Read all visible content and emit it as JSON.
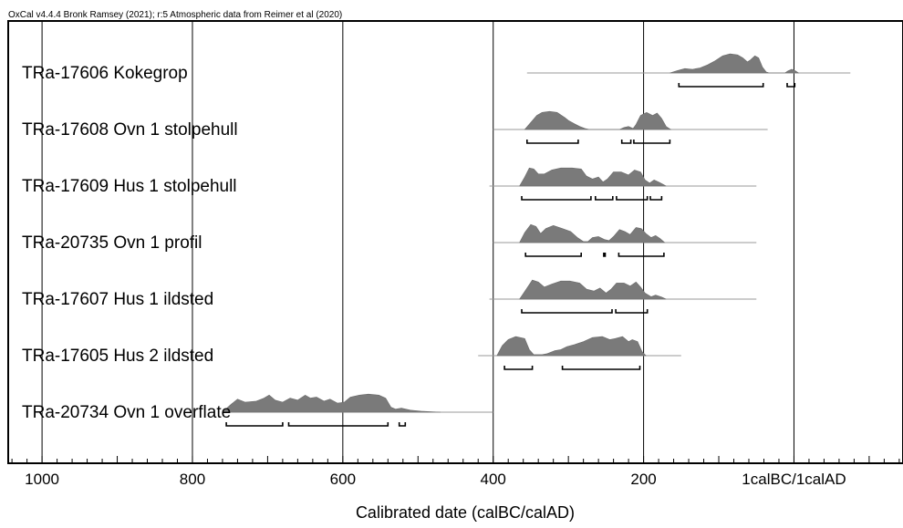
{
  "chart_data": {
    "type": "area",
    "header": "OxCal v4.4.4 Bronk Ramsey (2021); r:5 Atmospheric data from Reimer et al (2020)",
    "xlabel": "Calibrated date (calBC/calAD)",
    "xlim": [
      1045,
      -145
    ],
    "x_ticks": [
      {
        "value": 1000,
        "label": "1000"
      },
      {
        "value": 800,
        "label": "800"
      },
      {
        "value": 600,
        "label": "600"
      },
      {
        "value": 400,
        "label": "400"
      },
      {
        "value": 200,
        "label": "200"
      },
      {
        "value": 0,
        "label": "1calBC/1calAD"
      }
    ],
    "series": [
      {
        "name": "TRa-17606 Kokegrop",
        "dist": [
          [
            165,
            0
          ],
          [
            155,
            0.12
          ],
          [
            145,
            0.22
          ],
          [
            135,
            0.18
          ],
          [
            125,
            0.25
          ],
          [
            115,
            0.4
          ],
          [
            105,
            0.6
          ],
          [
            95,
            0.85
          ],
          [
            85,
            0.95
          ],
          [
            75,
            0.9
          ],
          [
            68,
            0.75
          ],
          [
            62,
            0.55
          ],
          [
            58,
            0.65
          ],
          [
            52,
            0.85
          ],
          [
            47,
            0.75
          ],
          [
            42,
            0.3
          ],
          [
            37,
            0.05
          ],
          [
            33,
            0
          ],
          [
            12,
            0
          ],
          [
            8,
            0.1
          ],
          [
            3,
            0.18
          ],
          [
            -2,
            0.1
          ],
          [
            -6,
            0
          ]
        ],
        "line": [
          355,
          -75
        ],
        "ranges": [
          [
            153,
            41
          ],
          [
            9,
            -1
          ]
        ]
      },
      {
        "name": "TRa-17608 Ovn 1 stolpehull",
        "dist": [
          [
            358,
            0
          ],
          [
            350,
            0.35
          ],
          [
            342,
            0.7
          ],
          [
            335,
            0.85
          ],
          [
            325,
            0.9
          ],
          [
            315,
            0.85
          ],
          [
            305,
            0.6
          ],
          [
            300,
            0.45
          ],
          [
            292,
            0.28
          ],
          [
            285,
            0.15
          ],
          [
            278,
            0.05
          ],
          [
            272,
            0
          ],
          [
            232,
            0
          ],
          [
            226,
            0.1
          ],
          [
            220,
            0.15
          ],
          [
            214,
            0.05
          ],
          [
            210,
            0.25
          ],
          [
            204,
            0.7
          ],
          [
            196,
            0.85
          ],
          [
            188,
            0.7
          ],
          [
            182,
            0.82
          ],
          [
            176,
            0.55
          ],
          [
            170,
            0.15
          ],
          [
            164,
            0
          ]
        ],
        "line": [
          400,
          35
        ],
        "ranges": [
          [
            355,
            287
          ],
          [
            229,
            217
          ],
          [
            213,
            165
          ]
        ]
      },
      {
        "name": "TRa-17609 Hus 1 stolpehull",
        "dist": [
          [
            365,
            0
          ],
          [
            358,
            0.45
          ],
          [
            352,
            0.9
          ],
          [
            346,
            0.85
          ],
          [
            340,
            0.6
          ],
          [
            332,
            0.6
          ],
          [
            322,
            0.8
          ],
          [
            310,
            0.9
          ],
          [
            295,
            0.9
          ],
          [
            283,
            0.85
          ],
          [
            276,
            0.5
          ],
          [
            268,
            0.35
          ],
          [
            260,
            0.45
          ],
          [
            254,
            0.2
          ],
          [
            248,
            0.35
          ],
          [
            240,
            0.7
          ],
          [
            230,
            0.7
          ],
          [
            220,
            0.55
          ],
          [
            212,
            0.8
          ],
          [
            204,
            0.7
          ],
          [
            198,
            0.3
          ],
          [
            192,
            0.15
          ],
          [
            186,
            0.3
          ],
          [
            180,
            0.2
          ],
          [
            175,
            0.1
          ],
          [
            170,
            0
          ]
        ],
        "line": [
          405,
          50
        ],
        "ranges": [
          [
            362,
            270
          ],
          [
            264,
            241
          ],
          [
            236,
            195
          ],
          [
            191,
            176
          ]
        ]
      },
      {
        "name": "TRa-20735 Ovn 1 profil",
        "dist": [
          [
            365,
            0
          ],
          [
            358,
            0.5
          ],
          [
            350,
            0.9
          ],
          [
            343,
            0.8
          ],
          [
            337,
            0.45
          ],
          [
            330,
            0.7
          ],
          [
            320,
            0.85
          ],
          [
            308,
            0.7
          ],
          [
            297,
            0.55
          ],
          [
            288,
            0.25
          ],
          [
            280,
            0.05
          ],
          [
            274,
            0.05
          ],
          [
            268,
            0.25
          ],
          [
            260,
            0.3
          ],
          [
            252,
            0.15
          ],
          [
            246,
            0.1
          ],
          [
            240,
            0.3
          ],
          [
            232,
            0.65
          ],
          [
            225,
            0.55
          ],
          [
            218,
            0.4
          ],
          [
            210,
            0.75
          ],
          [
            203,
            0.7
          ],
          [
            197,
            0.45
          ],
          [
            190,
            0.25
          ],
          [
            184,
            0.35
          ],
          [
            178,
            0.2
          ],
          [
            172,
            0
          ]
        ],
        "line": [
          400,
          50
        ],
        "ranges": [
          [
            357,
            283
          ],
          [
            253,
            251
          ],
          [
            233,
            173
          ]
        ]
      },
      {
        "name": "TRa-17607 Hus 1 ildsted",
        "dist": [
          [
            365,
            0
          ],
          [
            356,
            0.5
          ],
          [
            348,
            0.95
          ],
          [
            340,
            0.85
          ],
          [
            332,
            0.6
          ],
          [
            322,
            0.75
          ],
          [
            310,
            0.9
          ],
          [
            298,
            0.9
          ],
          [
            285,
            0.8
          ],
          [
            276,
            0.5
          ],
          [
            266,
            0.4
          ],
          [
            258,
            0.55
          ],
          [
            250,
            0.3
          ],
          [
            243,
            0.5
          ],
          [
            236,
            0.8
          ],
          [
            226,
            0.8
          ],
          [
            218,
            0.65
          ],
          [
            210,
            0.85
          ],
          [
            204,
            0.6
          ],
          [
            198,
            0.3
          ],
          [
            190,
            0.12
          ],
          [
            184,
            0.2
          ],
          [
            176,
            0.1
          ],
          [
            170,
            0
          ]
        ],
        "line": [
          405,
          50
        ],
        "ranges": [
          [
            362,
            242
          ],
          [
            237,
            195
          ]
        ]
      },
      {
        "name": "TRa-17605 Hus 2 ildsted",
        "dist": [
          [
            395,
            0
          ],
          [
            388,
            0.5
          ],
          [
            380,
            0.8
          ],
          [
            370,
            0.95
          ],
          [
            358,
            0.85
          ],
          [
            352,
            0.3
          ],
          [
            346,
            0.05
          ],
          [
            335,
            0.05
          ],
          [
            328,
            0.1
          ],
          [
            318,
            0.25
          ],
          [
            310,
            0.3
          ],
          [
            302,
            0.45
          ],
          [
            292,
            0.55
          ],
          [
            280,
            0.7
          ],
          [
            268,
            0.9
          ],
          [
            255,
            0.95
          ],
          [
            245,
            0.8
          ],
          [
            238,
            0.85
          ],
          [
            228,
            0.95
          ],
          [
            220,
            0.7
          ],
          [
            215,
            0.8
          ],
          [
            208,
            0.7
          ],
          [
            202,
            0.2
          ],
          [
            197,
            0
          ]
        ],
        "line": [
          420,
          150
        ],
        "ranges": [
          [
            385,
            348
          ],
          [
            308,
            205
          ]
        ]
      },
      {
        "name": "TRa-20734 Ovn 1 overflate",
        "dist": [
          [
            760,
            0
          ],
          [
            750,
            0.35
          ],
          [
            740,
            0.65
          ],
          [
            730,
            0.5
          ],
          [
            715,
            0.55
          ],
          [
            705,
            0.7
          ],
          [
            698,
            0.85
          ],
          [
            690,
            0.6
          ],
          [
            680,
            0.5
          ],
          [
            670,
            0.7
          ],
          [
            660,
            0.6
          ],
          [
            650,
            0.85
          ],
          [
            643,
            0.7
          ],
          [
            635,
            0.75
          ],
          [
            625,
            0.55
          ],
          [
            617,
            0.65
          ],
          [
            607,
            0.45
          ],
          [
            598,
            0.5
          ],
          [
            590,
            0.75
          ],
          [
            578,
            0.85
          ],
          [
            566,
            0.9
          ],
          [
            552,
            0.85
          ],
          [
            543,
            0.7
          ],
          [
            536,
            0.25
          ],
          [
            530,
            0.15
          ],
          [
            522,
            0.2
          ],
          [
            510,
            0.1
          ],
          [
            496,
            0.05
          ],
          [
            482,
            0.02
          ],
          [
            470,
            0
          ]
        ],
        "line": [
          760,
          400
        ],
        "ranges": [
          [
            755,
            680
          ],
          [
            672,
            540
          ],
          [
            525,
            517
          ]
        ]
      }
    ]
  }
}
